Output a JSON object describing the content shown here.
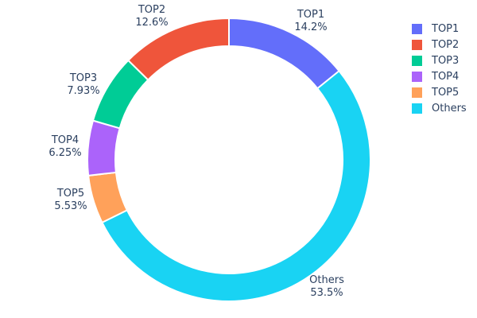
{
  "chart_data": {
    "type": "pie",
    "subtype": "donut",
    "title": "",
    "hole_ratio": 0.8,
    "labels": [
      "TOP1",
      "TOP2",
      "TOP3",
      "TOP4",
      "TOP5",
      "Others"
    ],
    "values": [
      14.2,
      12.6,
      7.93,
      6.25,
      5.53,
      53.5
    ],
    "percent_labels": [
      "14.2%",
      "12.6%",
      "7.93%",
      "6.25%",
      "5.53%",
      "53.5%"
    ],
    "colors": [
      "#636efa",
      "#ef553b",
      "#00cc96",
      "#ab63fa",
      "#ffa15a",
      "#19d3f3"
    ],
    "display_order_clockwise_from_top": [
      "TOP1",
      "Others",
      "TOP5",
      "TOP4",
      "TOP3",
      "TOP2"
    ],
    "labels_outside": true,
    "separator_color": "#ffffff",
    "text_color": "#2a3f5f",
    "background_color": "#ffffff",
    "legend": {
      "position": "right",
      "items": [
        {
          "label": "TOP1",
          "color": "#636efa"
        },
        {
          "label": "TOP2",
          "color": "#ef553b"
        },
        {
          "label": "TOP3",
          "color": "#00cc96"
        },
        {
          "label": "TOP4",
          "color": "#ab63fa"
        },
        {
          "label": "TOP5",
          "color": "#ffa15a"
        },
        {
          "label": "Others",
          "color": "#19d3f3"
        }
      ]
    }
  }
}
